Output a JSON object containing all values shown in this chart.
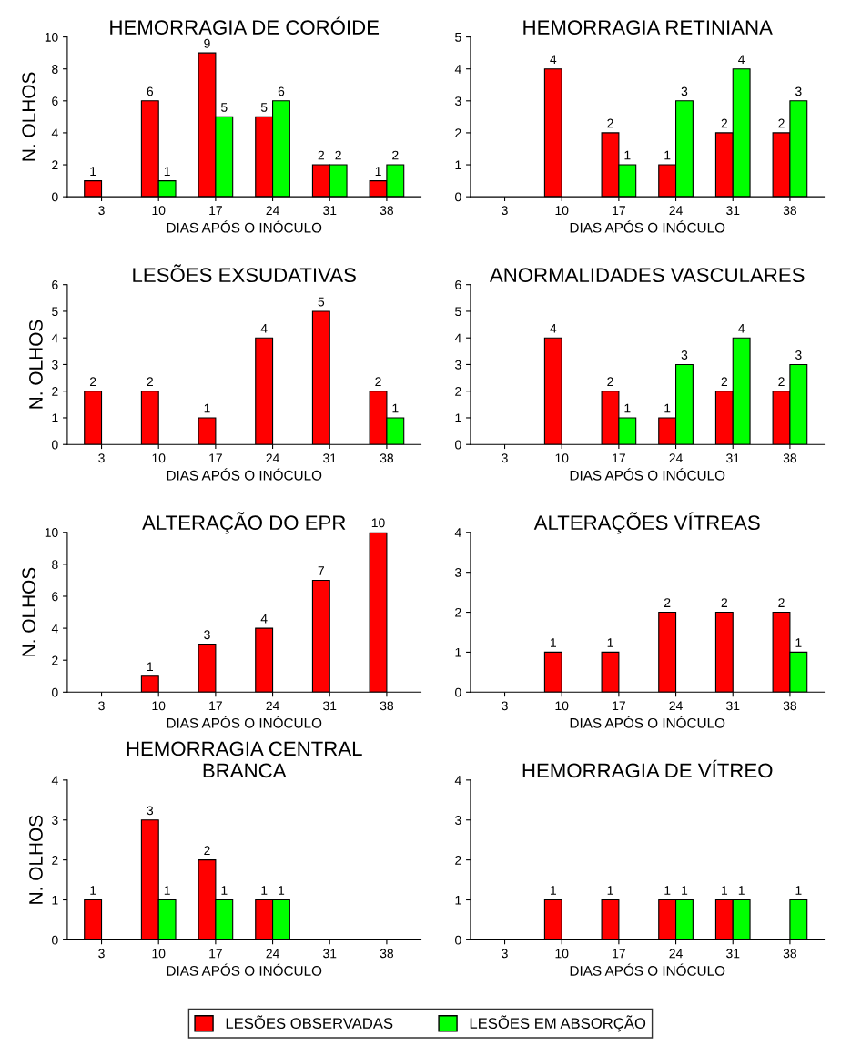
{
  "chart_data": [
    {
      "type": "bar",
      "title": "HEMORRAGIA DE CORÓIDE",
      "xlabel": "DIAS APÓS O INÓCULO",
      "ylabel": "N. OLHOS",
      "categories": [
        "3",
        "10",
        "17",
        "24",
        "31",
        "38"
      ],
      "ylim": [
        0,
        10
      ],
      "yticks": [
        0,
        2,
        4,
        6,
        8,
        10
      ],
      "data_labels": true,
      "series": [
        {
          "color": "#ff0000",
          "values": [
            1,
            6,
            9,
            5,
            2,
            1
          ]
        },
        {
          "color": "#00ff00",
          "values": [
            null,
            1,
            5,
            6,
            2,
            2
          ]
        }
      ]
    },
    {
      "type": "bar",
      "title": "HEMORRAGIA RETINIANA",
      "xlabel": "DIAS APÓS O INÓCULO",
      "categories": [
        "3",
        "10",
        "17",
        "24",
        "31",
        "38"
      ],
      "ylim": [
        0,
        5
      ],
      "yticks": [
        0,
        1,
        2,
        3,
        4,
        5
      ],
      "data_labels": true,
      "series": [
        {
          "color": "#ff0000",
          "values": [
            null,
            4,
            2,
            1,
            2,
            2
          ]
        },
        {
          "color": "#00ff00",
          "values": [
            null,
            null,
            1,
            3,
            4,
            3
          ]
        }
      ]
    },
    {
      "type": "bar",
      "title": "LESÕES EXSUDATIVAS",
      "xlabel": "DIAS APÓS O INÓCULO",
      "ylabel": "N. OLHOS",
      "categories": [
        "3",
        "10",
        "17",
        "24",
        "31",
        "38"
      ],
      "ylim": [
        0,
        6
      ],
      "yticks": [
        0,
        1,
        2,
        3,
        4,
        5,
        6
      ],
      "data_labels": true,
      "series": [
        {
          "color": "#ff0000",
          "values": [
            2,
            2,
            1,
            4,
            5,
            2
          ]
        },
        {
          "color": "#00ff00",
          "values": [
            null,
            null,
            null,
            null,
            null,
            1
          ]
        }
      ]
    },
    {
      "type": "bar",
      "title": "ANORMALIDADES VASCULARES",
      "xlabel": "DIAS APÓS O INÓCULO",
      "categories": [
        "3",
        "10",
        "17",
        "24",
        "31",
        "38"
      ],
      "ylim": [
        0,
        6
      ],
      "yticks": [
        0,
        1,
        2,
        3,
        4,
        5,
        6
      ],
      "data_labels": true,
      "series": [
        {
          "color": "#ff0000",
          "values": [
            null,
            4,
            2,
            1,
            2,
            2
          ]
        },
        {
          "color": "#00ff00",
          "values": [
            null,
            null,
            1,
            3,
            4,
            3
          ]
        }
      ]
    },
    {
      "type": "bar",
      "title": "ALTERAÇÃO DO EPR",
      "xlabel": "DIAS APÓS O INÓCULO",
      "ylabel": "N. OLHOS",
      "categories": [
        "3",
        "10",
        "17",
        "24",
        "31",
        "38"
      ],
      "ylim": [
        0,
        10
      ],
      "yticks": [
        0,
        2,
        4,
        6,
        8,
        10
      ],
      "data_labels": true,
      "series": [
        {
          "color": "#ff0000",
          "values": [
            null,
            1,
            3,
            4,
            7,
            10
          ]
        },
        {
          "color": "#00ff00",
          "values": [
            null,
            null,
            null,
            null,
            null,
            null
          ]
        }
      ]
    },
    {
      "type": "bar",
      "title": "ALTERAÇÕES VÍTREAS",
      "xlabel": "DIAS APÓS O INÓCULO",
      "categories": [
        "3",
        "10",
        "17",
        "24",
        "31",
        "38"
      ],
      "ylim": [
        0,
        4
      ],
      "yticks": [
        0,
        1,
        2,
        3,
        4
      ],
      "data_labels": true,
      "series": [
        {
          "color": "#ff0000",
          "values": [
            null,
            1,
            1,
            2,
            2,
            2
          ]
        },
        {
          "color": "#00ff00",
          "values": [
            null,
            null,
            null,
            null,
            null,
            1
          ]
        }
      ]
    },
    {
      "type": "bar",
      "title": "HEMORRAGIA CENTRAL\nBRANCA",
      "xlabel": "DIAS APÓS O INÓCULO",
      "ylabel": "N. OLHOS",
      "categories": [
        "3",
        "10",
        "17",
        "24",
        "31",
        "38"
      ],
      "ylim": [
        0,
        4
      ],
      "yticks": [
        0,
        1,
        2,
        3,
        4
      ],
      "data_labels": true,
      "series": [
        {
          "color": "#ff0000",
          "values": [
            1,
            3,
            2,
            1,
            null,
            null
          ]
        },
        {
          "color": "#00ff00",
          "values": [
            null,
            1,
            1,
            1,
            null,
            null
          ]
        }
      ]
    },
    {
      "type": "bar",
      "title": "HEMORRAGIA DE VÍTREO",
      "xlabel": "DIAS APÓS O INÓCULO",
      "categories": [
        "3",
        "10",
        "17",
        "24",
        "31",
        "38"
      ],
      "ylim": [
        0,
        4
      ],
      "yticks": [
        0,
        1,
        2,
        3,
        4
      ],
      "data_labels": true,
      "legend": "bottom",
      "series": [
        {
          "name": "LESÕES OBSERVADAS",
          "color": "#ff0000",
          "values": [
            null,
            1,
            1,
            1,
            1,
            null
          ]
        },
        {
          "name": "LESÕES EM ABSORÇÃO",
          "color": "#00ff00",
          "values": [
            null,
            null,
            null,
            1,
            1,
            1
          ]
        }
      ]
    }
  ]
}
